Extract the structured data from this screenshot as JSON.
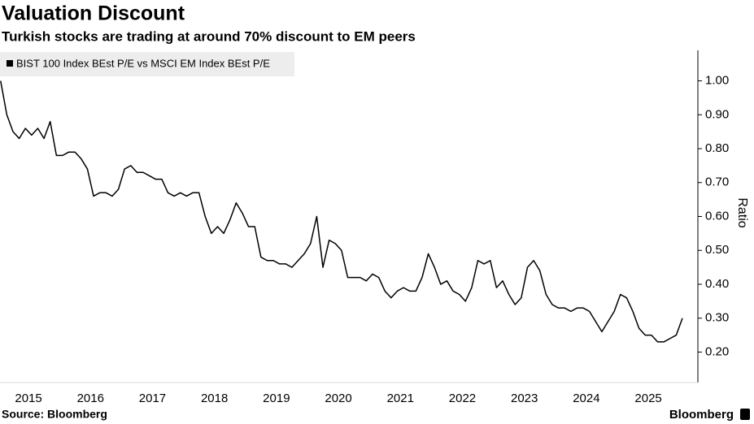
{
  "chart_data": {
    "type": "line",
    "title": "Valuation Discount",
    "subtitle": "Turkish stocks are trading at around 70% discount to EM peers",
    "ylabel": "Ratio",
    "source": "Source: Bloomberg",
    "brand": "Bloomberg",
    "legend": "upper left",
    "grid": false,
    "x": [
      2014.55,
      2014.65,
      2014.75,
      2014.85,
      2014.95,
      2015.05,
      2015.15,
      2015.25,
      2015.35,
      2015.45,
      2015.55,
      2015.65,
      2015.75,
      2015.85,
      2015.95,
      2016.05,
      2016.15,
      2016.25,
      2016.35,
      2016.45,
      2016.55,
      2016.65,
      2016.75,
      2016.85,
      2016.95,
      2017.05,
      2017.15,
      2017.25,
      2017.35,
      2017.45,
      2017.55,
      2017.65,
      2017.75,
      2017.85,
      2017.95,
      2018.05,
      2018.15,
      2018.25,
      2018.35,
      2018.45,
      2018.55,
      2018.65,
      2018.75,
      2018.85,
      2018.95,
      2019.05,
      2019.15,
      2019.25,
      2019.35,
      2019.45,
      2019.55,
      2019.65,
      2019.75,
      2019.85,
      2019.95,
      2020.05,
      2020.15,
      2020.25,
      2020.35,
      2020.45,
      2020.55,
      2020.65,
      2020.75,
      2020.85,
      2020.95,
      2021.05,
      2021.15,
      2021.25,
      2021.35,
      2021.45,
      2021.55,
      2021.65,
      2021.75,
      2021.85,
      2021.95,
      2022.05,
      2022.15,
      2022.25,
      2022.35,
      2022.45,
      2022.55,
      2022.65,
      2022.75,
      2022.85,
      2022.95,
      2023.05,
      2023.15,
      2023.25,
      2023.35,
      2023.45,
      2023.55,
      2023.65,
      2023.75,
      2023.85,
      2023.95,
      2024.05,
      2024.15,
      2024.25,
      2024.35,
      2024.45,
      2024.55,
      2024.65,
      2024.75,
      2024.85,
      2024.95,
      2025.05,
      2025.15,
      2025.25,
      2025.35,
      2025.45,
      2025.55
    ],
    "series": [
      {
        "name": "BIST 100 Index BEst P/E vs MSCI EM Index BEst P/E",
        "color": "#000000",
        "values": [
          1.0,
          0.9,
          0.85,
          0.83,
          0.86,
          0.84,
          0.86,
          0.83,
          0.88,
          0.78,
          0.78,
          0.79,
          0.79,
          0.77,
          0.74,
          0.66,
          0.67,
          0.67,
          0.66,
          0.68,
          0.74,
          0.75,
          0.73,
          0.73,
          0.72,
          0.71,
          0.71,
          0.67,
          0.66,
          0.67,
          0.66,
          0.67,
          0.67,
          0.6,
          0.55,
          0.57,
          0.55,
          0.59,
          0.64,
          0.61,
          0.57,
          0.57,
          0.48,
          0.47,
          0.47,
          0.46,
          0.46,
          0.45,
          0.47,
          0.49,
          0.52,
          0.6,
          0.45,
          0.53,
          0.52,
          0.5,
          0.42,
          0.42,
          0.42,
          0.41,
          0.43,
          0.42,
          0.38,
          0.36,
          0.38,
          0.39,
          0.38,
          0.38,
          0.42,
          0.49,
          0.45,
          0.4,
          0.41,
          0.38,
          0.37,
          0.35,
          0.39,
          0.47,
          0.46,
          0.47,
          0.39,
          0.41,
          0.37,
          0.34,
          0.36,
          0.45,
          0.47,
          0.44,
          0.37,
          0.34,
          0.33,
          0.33,
          0.32,
          0.33,
          0.33,
          0.32,
          0.29,
          0.26,
          0.29,
          0.32,
          0.37,
          0.36,
          0.32,
          0.27,
          0.25,
          0.25,
          0.23,
          0.23,
          0.24,
          0.25,
          0.3
        ]
      }
    ],
    "xlim": [
      2014.54,
      2025.76
    ],
    "xticks": [
      2015,
      2016,
      2017,
      2018,
      2019,
      2020,
      2021,
      2022,
      2023,
      2024,
      2025
    ],
    "ylim": [
      0.11,
      1.09
    ],
    "yticks": [
      {
        "value": 0.2,
        "label": "0.20"
      },
      {
        "value": 0.3,
        "label": "0.30"
      },
      {
        "value": 0.4,
        "label": "0.40"
      },
      {
        "value": 0.5,
        "label": "0.50"
      },
      {
        "value": 0.6,
        "label": "0.60"
      },
      {
        "value": 0.7,
        "label": "0.70"
      },
      {
        "value": 0.8,
        "label": "0.80"
      },
      {
        "value": 0.9,
        "label": "0.90"
      },
      {
        "value": 1.0,
        "label": "1.00"
      }
    ]
  }
}
